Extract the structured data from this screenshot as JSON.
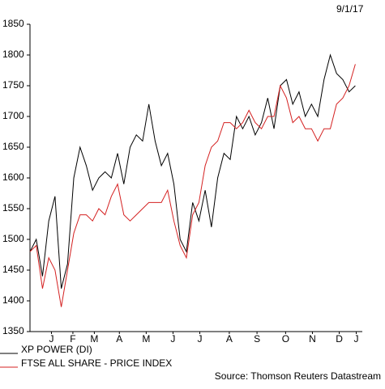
{
  "chart_data": {
    "type": "line",
    "date": "9/1/17",
    "source": "Source: Thomson Reuters Datastream",
    "x": [
      0,
      7,
      14,
      21,
      28,
      35,
      42,
      49,
      56,
      63,
      70,
      77,
      84,
      91,
      98,
      105,
      112,
      119,
      126,
      133,
      140,
      147,
      154,
      161,
      168,
      175,
      182,
      189,
      196,
      203,
      210,
      217,
      224,
      231,
      238,
      245,
      252,
      259,
      266,
      273,
      280,
      287,
      294,
      301,
      308,
      315,
      322,
      329,
      336,
      343,
      350,
      357,
      364
    ],
    "series": [
      {
        "name": "XP POWER (DI)",
        "color": "#000000",
        "values": [
          1480,
          1500,
          1440,
          1530,
          1570,
          1420,
          1460,
          1600,
          1650,
          1620,
          1580,
          1600,
          1610,
          1600,
          1640,
          1590,
          1650,
          1670,
          1660,
          1720,
          1660,
          1620,
          1640,
          1590,
          1500,
          1480,
          1560,
          1530,
          1580,
          1520,
          1600,
          1640,
          1630,
          1700,
          1680,
          1700,
          1670,
          1690,
          1730,
          1680,
          1750,
          1760,
          1720,
          1740,
          1700,
          1720,
          1700,
          1760,
          1800,
          1770,
          1760,
          1740,
          1750
        ]
      },
      {
        "name": "FTSE ALL SHARE - PRICE INDEX",
        "color": "#d42020",
        "values": [
          1480,
          1490,
          1420,
          1470,
          1450,
          1390,
          1450,
          1510,
          1540,
          1540,
          1530,
          1550,
          1540,
          1570,
          1590,
          1540,
          1530,
          1540,
          1550,
          1560,
          1560,
          1560,
          1580,
          1530,
          1490,
          1470,
          1540,
          1560,
          1620,
          1650,
          1660,
          1690,
          1690,
          1680,
          1690,
          1710,
          1690,
          1680,
          1700,
          1700,
          1750,
          1730,
          1690,
          1700,
          1680,
          1680,
          1660,
          1680,
          1680,
          1720,
          1730,
          1750,
          1785
        ]
      }
    ],
    "xlim": [
      0,
      370
    ],
    "xticks": [
      {
        "value": 24,
        "label": "J"
      },
      {
        "value": 48,
        "label": "F"
      },
      {
        "value": 72,
        "label": "M"
      },
      {
        "value": 100,
        "label": "A"
      },
      {
        "value": 130,
        "label": "M"
      },
      {
        "value": 160,
        "label": "J"
      },
      {
        "value": 190,
        "label": "J"
      },
      {
        "value": 223,
        "label": "A"
      },
      {
        "value": 254,
        "label": "S"
      },
      {
        "value": 286,
        "label": "O"
      },
      {
        "value": 316,
        "label": "N"
      },
      {
        "value": 346,
        "label": "D"
      },
      {
        "value": 365,
        "label": "J"
      }
    ],
    "ylim": [
      1350,
      1850
    ],
    "yticks": [
      1350,
      1400,
      1450,
      1500,
      1550,
      1600,
      1650,
      1700,
      1750,
      1800,
      1850
    ]
  }
}
